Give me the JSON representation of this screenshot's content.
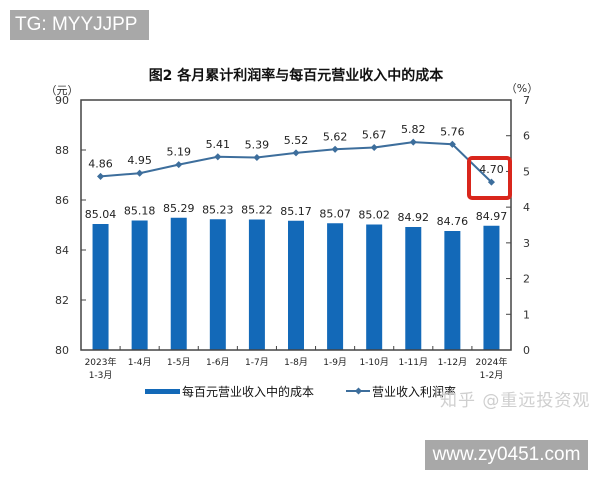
{
  "watermarks": {
    "top": "TG: MYYJJPP",
    "bottom": "www.zy0451.com",
    "zhihu": "知乎 @重远投资观"
  },
  "colors": {
    "bar": "#1369b8",
    "line": "#3d6e9c",
    "highlight_box": "#d9261c",
    "axis": "#333333",
    "watermark_bg": "#a8a8a8"
  },
  "chart_data": {
    "type": "bar+line",
    "title": "图2  各月累计利润率与每百元营业收入中的成本",
    "left_axis": {
      "label": "（元）",
      "ylim": [
        80,
        90
      ],
      "ticks": [
        "80",
        "82",
        "84",
        "86",
        "88",
        "90"
      ]
    },
    "right_axis": {
      "label": "（%）",
      "ylim": [
        0,
        7
      ],
      "ticks": [
        "0",
        "1",
        "2",
        "3",
        "4",
        "5",
        "6",
        "7"
      ]
    },
    "categories": [
      "2023年 1-3月",
      "1-4月",
      "1-5月",
      "1-6月",
      "1-7月",
      "1-8月",
      "1-9月",
      "1-10月",
      "1-11月",
      "1-12月",
      "2024年 1-2月"
    ],
    "category_lines": [
      [
        "2023年",
        "1-3月"
      ],
      [
        "1-4月"
      ],
      [
        "1-5月"
      ],
      [
        "1-6月"
      ],
      [
        "1-7月"
      ],
      [
        "1-8月"
      ],
      [
        "1-9月"
      ],
      [
        "1-10月"
      ],
      [
        "1-11月"
      ],
      [
        "1-12月"
      ],
      [
        "2024年",
        "1-2月"
      ]
    ],
    "series": [
      {
        "name": "每百元营业收入中的成本",
        "type": "bar",
        "axis": "left",
        "values": [
          85.04,
          85.18,
          85.29,
          85.23,
          85.22,
          85.17,
          85.07,
          85.02,
          84.92,
          84.76,
          84.97
        ],
        "labels": [
          "85.04",
          "85.18",
          "85.29",
          "85.23",
          "85.22",
          "85.17",
          "85.07",
          "85.02",
          "84.92",
          "84.76",
          "84.97"
        ]
      },
      {
        "name": "营业收入利润率",
        "type": "line",
        "axis": "right",
        "values": [
          4.86,
          4.95,
          5.19,
          5.41,
          5.39,
          5.52,
          5.62,
          5.67,
          5.82,
          5.76,
          4.7
        ],
        "labels": [
          "4.86",
          "4.95",
          "5.19",
          "5.41",
          "5.39",
          "5.52",
          "5.62",
          "5.67",
          "5.82",
          "5.76",
          "4.70"
        ]
      }
    ],
    "annotations": [
      {
        "type": "highlight-box",
        "target": "2024年 1-2月 营业收入利润率",
        "value": "4.70"
      }
    ],
    "legend": {
      "position": "bottom",
      "entries": [
        "每百元营业收入中的成本",
        "营业收入利润率"
      ]
    },
    "grid": false
  }
}
